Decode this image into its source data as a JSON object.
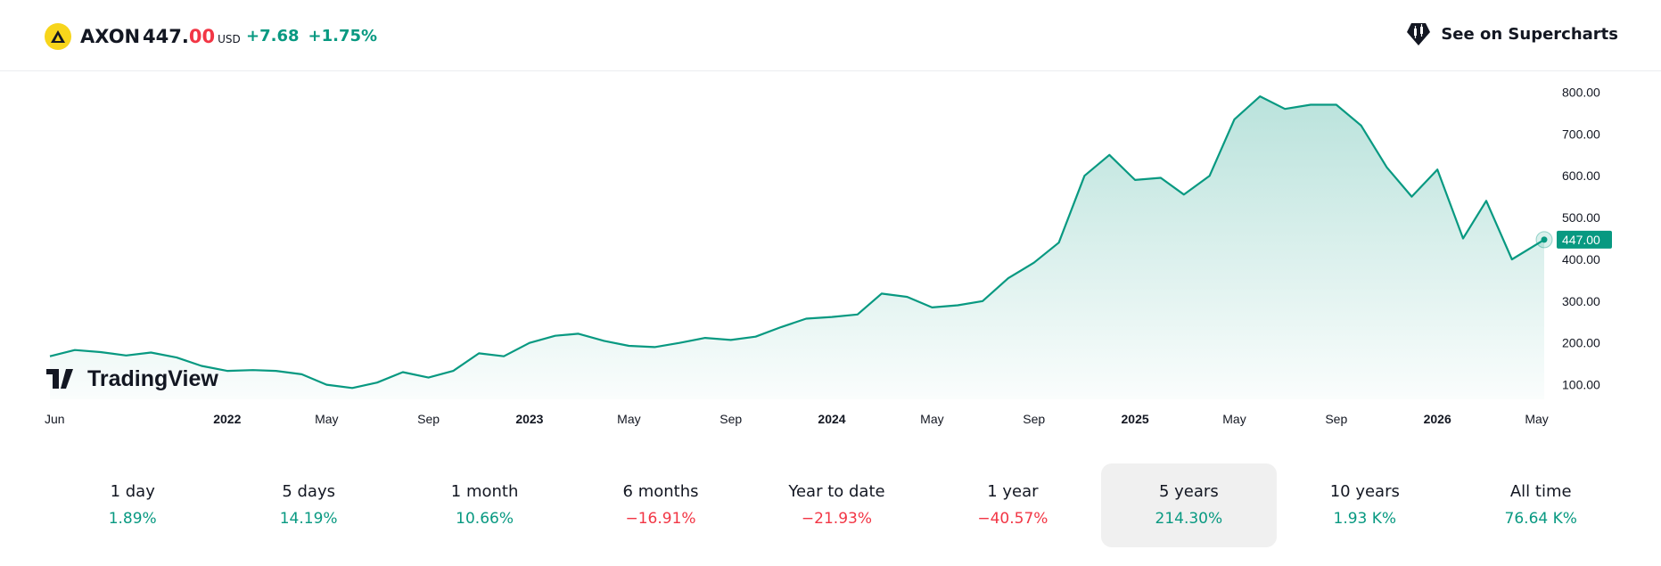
{
  "header": {
    "ticker": "AXON",
    "price_main": "447.",
    "price_last": "00",
    "currency": "USD",
    "change_abs": "+7.68",
    "change_pct": "+1.75%",
    "supercharts_label": "See on Supercharts"
  },
  "colors": {
    "line": "#089981",
    "negative": "#f23645",
    "logo": "#f7d51b"
  },
  "watermark": "TradingView",
  "chart_data": {
    "type": "area",
    "x": [
      "2021-06-01",
      "2021-07-01",
      "2021-08-01",
      "2021-09-01",
      "2021-10-01",
      "2021-11-01",
      "2021-12-01",
      "2022-01-01",
      "2022-02-01",
      "2022-03-01",
      "2022-04-01",
      "2022-05-01",
      "2022-06-01",
      "2022-07-01",
      "2022-08-01",
      "2022-09-01",
      "2022-10-01",
      "2022-11-01",
      "2022-12-01",
      "2023-01-01",
      "2023-02-01",
      "2023-03-01",
      "2023-04-01",
      "2023-05-01",
      "2023-06-01",
      "2023-07-01",
      "2023-08-01",
      "2023-09-01",
      "2023-10-01",
      "2023-11-01",
      "2023-12-01",
      "2024-01-01",
      "2024-02-01",
      "2024-03-01",
      "2024-04-01",
      "2024-05-01",
      "2024-06-01",
      "2024-07-01",
      "2024-08-01",
      "2024-09-01",
      "2024-10-01",
      "2024-11-01",
      "2024-12-01",
      "2025-01-01",
      "2025-02-01",
      "2025-03-01",
      "2025-04-01",
      "2025-05-01",
      "2025-06-01",
      "2025-07-01",
      "2025-08-01",
      "2025-09-01",
      "2025-10-01",
      "2025-11-01",
      "2025-12-01",
      "2026-01-01",
      "2026-02-01",
      "2026-03-01",
      "2026-04-01",
      "2026-05-10"
    ],
    "y": [
      168,
      183,
      178,
      170,
      177,
      165,
      145,
      133,
      135,
      133,
      125,
      100,
      92,
      105,
      130,
      117,
      133,
      175,
      168,
      200,
      217,
      222,
      205,
      193,
      190,
      200,
      212,
      207,
      215,
      238,
      258,
      262,
      268,
      318,
      310,
      285,
      290,
      300,
      355,
      392,
      440,
      600,
      650,
      590,
      595,
      555,
      600,
      735,
      790,
      760,
      770,
      770,
      720,
      620,
      550,
      615,
      450,
      540,
      400,
      447
    ],
    "last_label": "447.00",
    "x_ticks": [
      {
        "label": "Jun",
        "date": "2021-06-01",
        "bold": false
      },
      {
        "label": "2022",
        "date": "2022-01-01",
        "bold": true
      },
      {
        "label": "May",
        "date": "2022-05-01",
        "bold": false
      },
      {
        "label": "Sep",
        "date": "2022-09-01",
        "bold": false
      },
      {
        "label": "2023",
        "date": "2023-01-01",
        "bold": true
      },
      {
        "label": "May",
        "date": "2023-05-01",
        "bold": false
      },
      {
        "label": "Sep",
        "date": "2023-09-01",
        "bold": false
      },
      {
        "label": "2024",
        "date": "2024-01-01",
        "bold": true
      },
      {
        "label": "May",
        "date": "2024-05-01",
        "bold": false
      },
      {
        "label": "Sep",
        "date": "2024-09-01",
        "bold": false
      },
      {
        "label": "2025",
        "date": "2025-01-01",
        "bold": true
      },
      {
        "label": "May",
        "date": "2025-05-01",
        "bold": false
      },
      {
        "label": "Sep",
        "date": "2025-09-01",
        "bold": false
      },
      {
        "label": "2026",
        "date": "2026-01-01",
        "bold": true
      },
      {
        "label": "May",
        "date": "2026-05-01",
        "bold": false
      }
    ],
    "y_ticks": [
      "800.00",
      "700.00",
      "600.00",
      "500.00",
      "400.00",
      "300.00",
      "200.00",
      "100.00"
    ],
    "ylim": [
      65,
      850
    ],
    "xlim": [
      "2021-06-01",
      "2026-05-10"
    ],
    "grid": false
  },
  "periods": [
    {
      "label": "1 day",
      "value": "1.89%",
      "sign": "pos",
      "active": false
    },
    {
      "label": "5 days",
      "value": "14.19%",
      "sign": "pos",
      "active": false
    },
    {
      "label": "1 month",
      "value": "10.66%",
      "sign": "pos",
      "active": false
    },
    {
      "label": "6 months",
      "value": "−16.91%",
      "sign": "neg",
      "active": false
    },
    {
      "label": "Year to date",
      "value": "−21.93%",
      "sign": "neg",
      "active": false
    },
    {
      "label": "1 year",
      "value": "−40.57%",
      "sign": "neg",
      "active": false
    },
    {
      "label": "5 years",
      "value": "214.30%",
      "sign": "pos",
      "active": true
    },
    {
      "label": "10 years",
      "value": "1.93 K%",
      "sign": "pos",
      "active": false
    },
    {
      "label": "All time",
      "value": "76.64 K%",
      "sign": "pos",
      "active": false
    }
  ]
}
